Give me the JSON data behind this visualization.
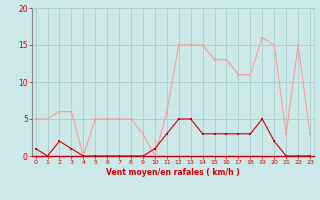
{
  "x": [
    0,
    1,
    2,
    3,
    4,
    5,
    6,
    7,
    8,
    9,
    10,
    11,
    12,
    13,
    14,
    15,
    16,
    17,
    18,
    19,
    20,
    21,
    22,
    23
  ],
  "vent_moyen": [
    1,
    0,
    2,
    1,
    0,
    0,
    0,
    0,
    0,
    0,
    1,
    3,
    5,
    5,
    3,
    3,
    3,
    3,
    3,
    5,
    2,
    0,
    0,
    0
  ],
  "rafales": [
    5,
    5,
    6,
    6,
    0,
    5,
    5,
    5,
    5,
    3,
    0,
    6,
    15,
    15,
    15,
    13,
    13,
    11,
    11,
    16,
    15,
    3,
    15,
    3
  ],
  "bg_color": "#cce8e8",
  "grid_color": "#aacccc",
  "line_color_moyen": "#cc0000",
  "line_color_rafales": "#ff9999",
  "xlabel": "Vent moyen/en rafales ( km/h )",
  "xlabel_color": "#cc0000",
  "tick_color": "#cc0000",
  "ylim": [
    0,
    20
  ],
  "yticks": [
    0,
    5,
    10,
    15,
    20
  ],
  "xticks": [
    0,
    1,
    2,
    3,
    4,
    5,
    6,
    7,
    8,
    9,
    10,
    11,
    12,
    13,
    14,
    15,
    16,
    17,
    18,
    19,
    20,
    21,
    22,
    23
  ]
}
